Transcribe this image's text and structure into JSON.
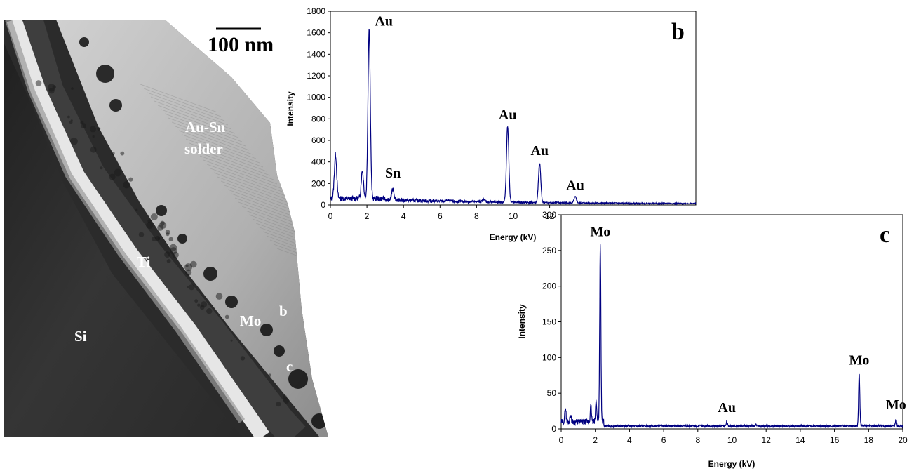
{
  "tem": {
    "scale_bar": "100 nm",
    "labels": {
      "au_sn_1": "Au-Sn",
      "au_sn_2": "solder",
      "ti": "Ti",
      "si": "Si",
      "mo": "Mo",
      "b": "b",
      "c": "c"
    }
  },
  "chart_data": [
    {
      "type": "line",
      "panel_label": "b",
      "xlabel": "Energy (kV)",
      "ylabel": "Intensity",
      "xlim": [
        0,
        20
      ],
      "ylim": [
        0,
        1800
      ],
      "x_ticks": [
        0,
        2,
        4,
        6,
        8,
        10,
        12
      ],
      "y_ticks": [
        0,
        200,
        400,
        600,
        800,
        1000,
        1200,
        1400,
        1600,
        1800
      ],
      "x_tick_labels": [
        "0",
        "2",
        "4",
        "6",
        "8",
        "10",
        "12"
      ],
      "y_tick_labels": [
        "0",
        "200",
        "400",
        "600",
        "800",
        "1000",
        "1200",
        "1400",
        "1600",
        "1800"
      ],
      "series": [
        {
          "color": "#000080",
          "peaks": [
            {
              "x": 0.28,
              "y": 470
            },
            {
              "x": 1.75,
              "y": 320
            },
            {
              "x": 2.12,
              "y": 1640
            },
            {
              "x": 3.42,
              "y": 150
            },
            {
              "x": 6.4,
              "y": 45
            },
            {
              "x": 8.4,
              "y": 55
            },
            {
              "x": 9.7,
              "y": 730
            },
            {
              "x": 11.45,
              "y": 385
            },
            {
              "x": 13.4,
              "y": 75
            }
          ]
        }
      ],
      "annotations": [
        {
          "text": "Au",
          "x": 2.12,
          "y": 1640
        },
        {
          "text": "Sn",
          "x": 3.42,
          "y": 150
        },
        {
          "text": "Au",
          "x": 9.7,
          "y": 730
        },
        {
          "text": "Au",
          "x": 11.45,
          "y": 385
        },
        {
          "text": "Au",
          "x": 13.4,
          "y": 75
        }
      ]
    },
    {
      "type": "line",
      "panel_label": "c",
      "xlabel": "Energy (kV)",
      "ylabel": "Intensity",
      "xlim": [
        0,
        20
      ],
      "ylim": [
        0,
        300
      ],
      "x_ticks": [
        0,
        2,
        4,
        6,
        8,
        10,
        12,
        14,
        16,
        18,
        20
      ],
      "y_ticks": [
        0,
        50,
        100,
        150,
        200,
        250,
        300
      ],
      "x_tick_labels": [
        "0",
        "2",
        "4",
        "6",
        "8",
        "10",
        "12",
        "14",
        "16",
        "18",
        "20"
      ],
      "y_tick_labels": [
        "0",
        "50",
        "100",
        "150",
        "200",
        "250",
        "300"
      ],
      "series": [
        {
          "color": "#000080",
          "peaks": [
            {
              "x": 0.25,
              "y": 30
            },
            {
              "x": 0.55,
              "y": 20
            },
            {
              "x": 1.74,
              "y": 32
            },
            {
              "x": 2.05,
              "y": 40
            },
            {
              "x": 2.29,
              "y": 258
            },
            {
              "x": 9.7,
              "y": 10
            },
            {
              "x": 11.4,
              "y": 6
            },
            {
              "x": 17.45,
              "y": 78
            },
            {
              "x": 19.6,
              "y": 14
            }
          ]
        }
      ],
      "annotations": [
        {
          "text": "Mo",
          "x": 2.29,
          "y": 258
        },
        {
          "text": "Au",
          "x": 9.7,
          "y": 10
        },
        {
          "text": "Mo",
          "x": 17.45,
          "y": 78
        },
        {
          "text": "Mo",
          "x": 19.6,
          "y": 14
        }
      ]
    }
  ]
}
